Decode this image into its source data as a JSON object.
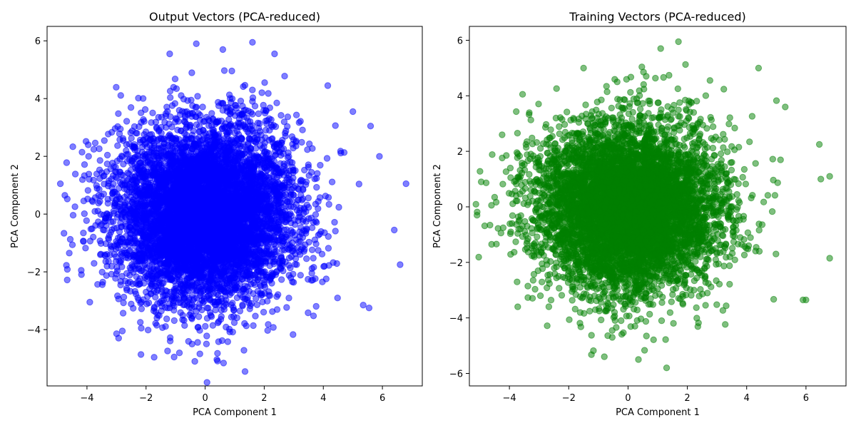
{
  "chart_data": [
    {
      "type": "scatter",
      "title": "Output Vectors (PCA-reduced)",
      "xlabel": "PCA Component 1",
      "ylabel": "PCA Component 2",
      "xlim": [
        -5.35,
        7.35
      ],
      "ylim": [
        -5.95,
        6.5
      ],
      "xticks": [
        -4,
        -2,
        0,
        2,
        4,
        6
      ],
      "yticks": [
        -4,
        -2,
        0,
        2,
        4,
        6
      ],
      "xtick_labels": [
        "−4",
        "−2",
        "0",
        "2",
        "4",
        "6"
      ],
      "ytick_labels": [
        "−4",
        "−2",
        "0",
        "2",
        "4",
        "6"
      ],
      "color": "#0000ff",
      "alpha": 0.5,
      "grid": false,
      "series": [
        {
          "distribution": {
            "center": [
              0.0,
              0.0
            ],
            "std": [
              1.5,
              1.5
            ],
            "count": 7000
          },
          "points": [
            [
              6.8,
              1.05
            ],
            [
              6.6,
              -1.75
            ],
            [
              6.4,
              -0.55
            ],
            [
              5.9,
              2.0
            ],
            [
              5.6,
              3.05
            ],
            [
              5.35,
              -3.15
            ],
            [
              5.55,
              -3.25
            ],
            [
              1.6,
              5.95
            ],
            [
              -0.3,
              5.9
            ],
            [
              1.35,
              -5.45
            ],
            [
              -0.35,
              -5.1
            ],
            [
              -1.05,
              -4.95
            ],
            [
              -4.9,
              1.05
            ],
            [
              -4.75,
              0.65
            ],
            [
              -4.6,
              -1.35
            ],
            [
              -1.2,
              5.55
            ],
            [
              2.35,
              5.55
            ],
            [
              5.0,
              3.55
            ],
            [
              4.15,
              4.45
            ],
            [
              0.6,
              5.7
            ]
          ]
        }
      ]
    },
    {
      "type": "scatter",
      "title": "Training Vectors (PCA-reduced)",
      "xlabel": "PCA Component 1",
      "ylabel": "PCA Component 2",
      "xlim": [
        -5.35,
        7.35
      ],
      "ylim": [
        -6.45,
        6.5
      ],
      "xticks": [
        -4,
        -2,
        0,
        2,
        4,
        6
      ],
      "yticks": [
        -6,
        -4,
        -2,
        0,
        2,
        4,
        6
      ],
      "xtick_labels": [
        "−4",
        "−2",
        "0",
        "2",
        "4",
        "6"
      ],
      "ytick_labels": [
        "−6",
        "−4",
        "−2",
        "0",
        "2",
        "4",
        "6"
      ],
      "color": "#008000",
      "alpha": 0.5,
      "grid": false,
      "series": [
        {
          "distribution": {
            "center": [
              0.0,
              0.0
            ],
            "std": [
              1.5,
              1.5
            ],
            "count": 7000
          },
          "points": [
            [
              6.8,
              1.1
            ],
            [
              6.8,
              -1.85
            ],
            [
              6.45,
              2.25
            ],
            [
              6.0,
              -3.35
            ],
            [
              5.9,
              -3.35
            ],
            [
              1.7,
              5.95
            ],
            [
              1.3,
              -5.8
            ],
            [
              0.35,
              -5.5
            ],
            [
              -0.8,
              -5.4
            ],
            [
              -4.95,
              0.9
            ],
            [
              -4.6,
              -1.35
            ],
            [
              4.4,
              5.0
            ],
            [
              5.3,
              3.6
            ],
            [
              6.5,
              1.0
            ],
            [
              -1.5,
              5.0
            ],
            [
              1.1,
              5.7
            ]
          ]
        }
      ]
    }
  ]
}
